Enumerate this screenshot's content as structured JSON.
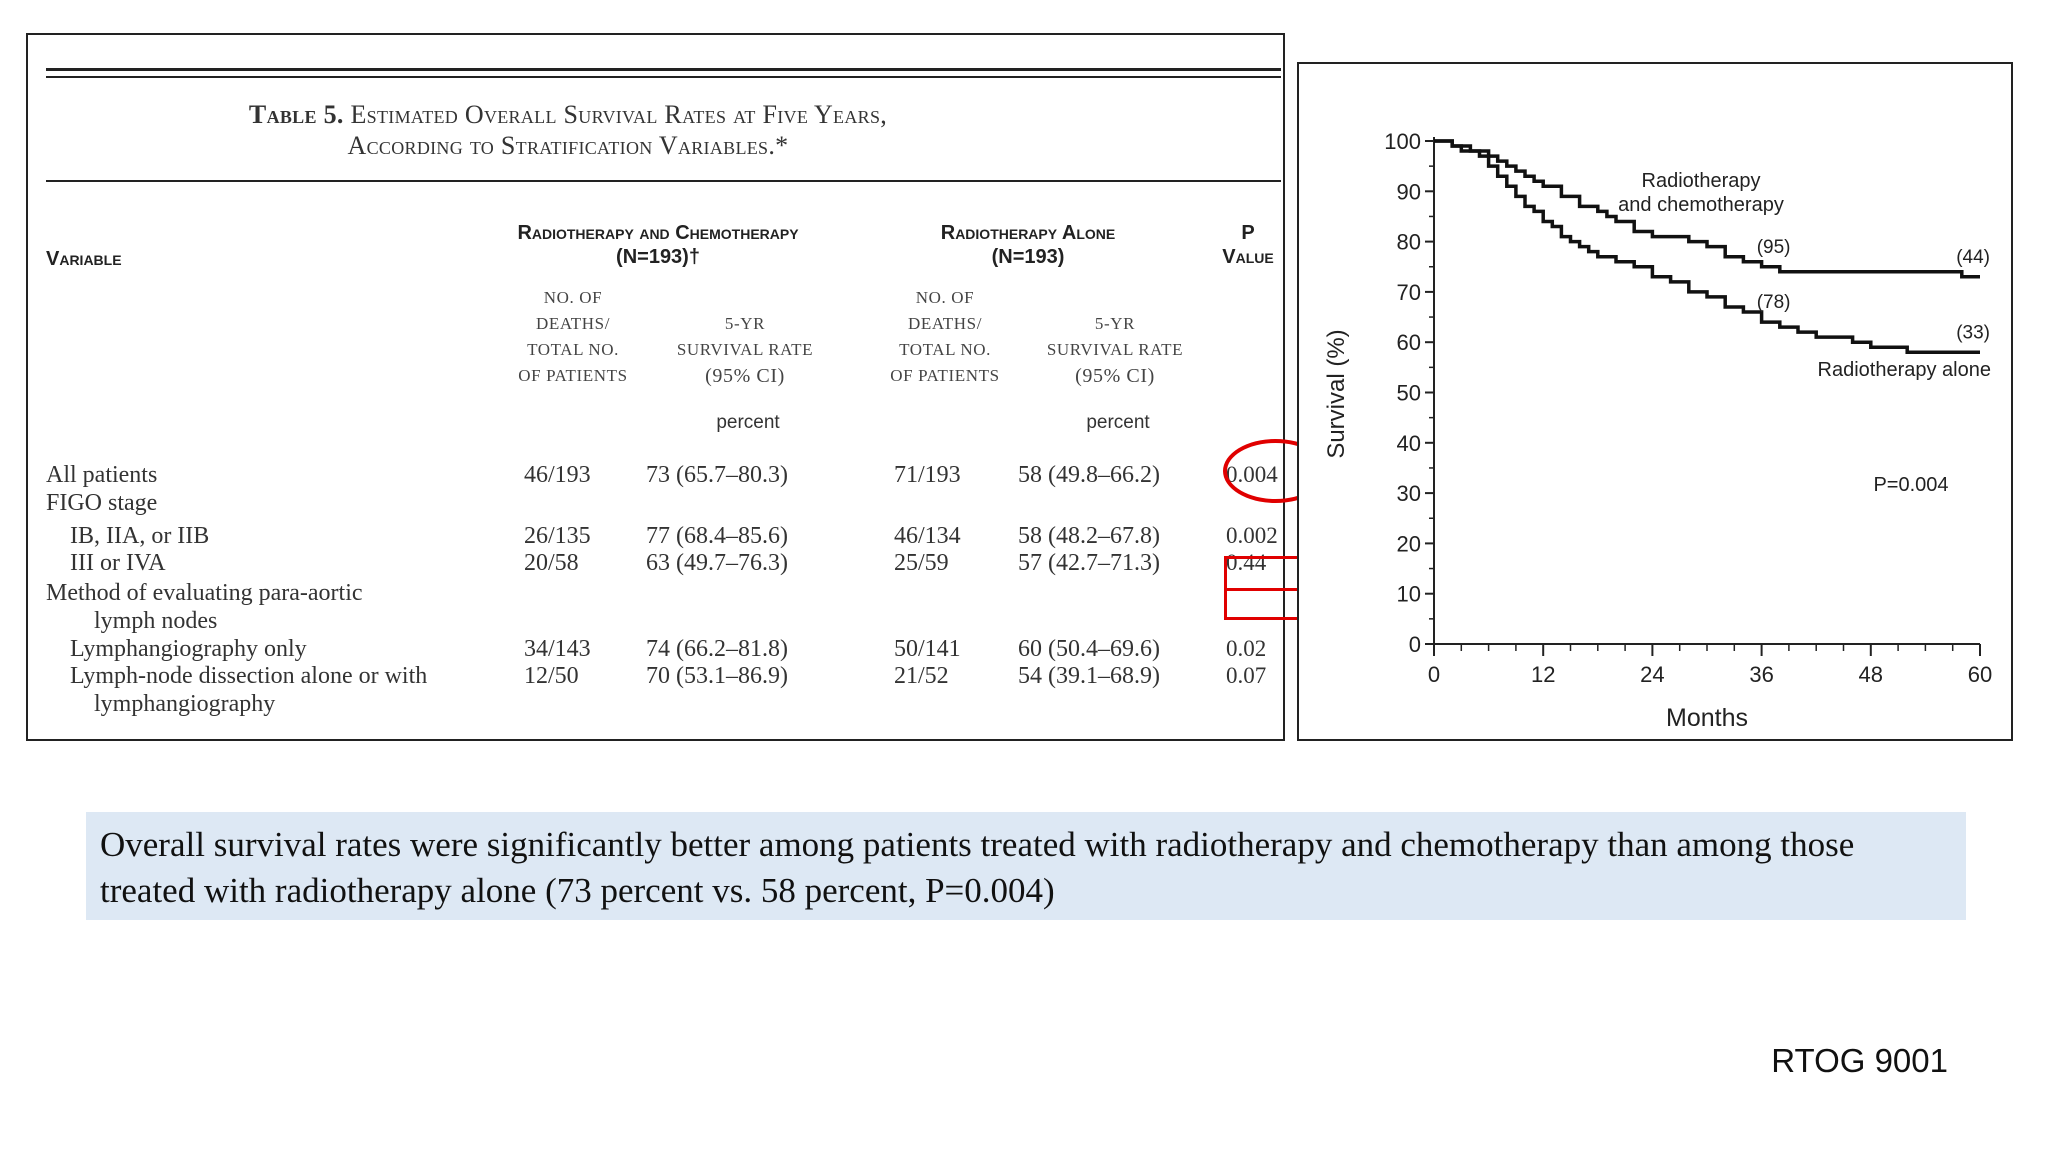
{
  "table": {
    "title_prefix": "Table 5.",
    "title_line1": "Estimated Overall Survival Rates at Five Years,",
    "title_line2": "According to Stratification Variables.*",
    "variable_header": "Variable",
    "group1_header": "Radiotherapy and Chemotherapy",
    "group1_n": "(N=193)†",
    "group2_header": "Radiotherapy Alone",
    "group2_n": "(N=193)",
    "p_header_1": "P",
    "p_header_2": "Value",
    "deaths_header": [
      "NO. OF",
      "DEATHS/",
      "TOTAL NO.",
      "OF PATIENTS"
    ],
    "rate_header": [
      "5-YR",
      "SURVIVAL RATE",
      "(95% CI)"
    ],
    "unit_label": "percent",
    "rows": [
      {
        "label": "All patients",
        "d1": "46/193",
        "r1": "73 (65.7–80.3)",
        "d2": "71/193",
        "r2": "58 (49.8–66.2)",
        "p": "0.004"
      },
      {
        "label": "FIGO stage"
      },
      {
        "label": "IB, IIA, or IIB",
        "d1": "26/135",
        "r1": "77 (68.4–85.6)",
        "d2": "46/134",
        "r2": "58 (48.2–67.8)",
        "p": "0.002"
      },
      {
        "label": "III or IVA",
        "d1": "20/58",
        "r1": "63 (49.7–76.3)",
        "d2": "25/59",
        "r2": "57 (42.7–71.3)",
        "p": "0.44"
      },
      {
        "label": "Method of evaluating para-aortic"
      },
      {
        "label": "lymph nodes"
      },
      {
        "label": "Lymphangiography only",
        "d1": "34/143",
        "r1": "74 (66.2–81.8)",
        "d2": "50/141",
        "r2": "60 (50.4–69.6)",
        "p": "0.02"
      },
      {
        "label": "Lymph-node dissection alone or with",
        "d1": "12/50",
        "r1": "70 (53.1–86.9)",
        "d2": "21/52",
        "r2": "54 (39.1–68.9)",
        "p": "0.07"
      },
      {
        "label": "lymphangiography"
      }
    ],
    "highlight_color": "#e00000"
  },
  "chart_data": {
    "type": "line",
    "title": "",
    "xlabel": "Months",
    "ylabel": "Survival (%)",
    "xlim": [
      0,
      60
    ],
    "ylim": [
      0,
      100
    ],
    "x_ticks": [
      0,
      12,
      24,
      36,
      48,
      60
    ],
    "y_ticks": [
      0,
      10,
      20,
      30,
      40,
      50,
      60,
      70,
      80,
      90,
      100
    ],
    "series": [
      {
        "name": "Radiotherapy and chemotherapy",
        "x": [
          0,
          1,
          2,
          3,
          4,
          5,
          6,
          7,
          8,
          9,
          10,
          11,
          12,
          14,
          16,
          18,
          19,
          20,
          22,
          24,
          26,
          28,
          30,
          32,
          34,
          36,
          38,
          40,
          48,
          56,
          58,
          60
        ],
        "y": [
          100,
          100,
          99,
          99,
          98,
          98,
          97,
          96,
          95,
          94,
          93,
          92,
          91,
          89,
          87,
          86,
          85,
          84,
          82,
          81,
          81,
          80,
          79,
          77,
          76,
          75,
          74,
          74,
          74,
          74,
          73,
          73
        ],
        "annotations": [
          {
            "x": 36,
            "text": "(95)"
          },
          {
            "x": 60,
            "text": "(44)"
          }
        ]
      },
      {
        "name": "Radiotherapy alone",
        "x": [
          0,
          1,
          2,
          3,
          4,
          5,
          6,
          7,
          8,
          9,
          10,
          11,
          12,
          13,
          14,
          15,
          16,
          17,
          18,
          20,
          22,
          24,
          26,
          28,
          30,
          32,
          34,
          36,
          38,
          40,
          42,
          44,
          46,
          48,
          52,
          56,
          60
        ],
        "y": [
          100,
          100,
          99,
          98,
          98,
          97,
          95,
          93,
          91,
          89,
          87,
          86,
          84,
          83,
          81,
          80,
          79,
          78,
          77,
          76,
          75,
          73,
          72,
          70,
          69,
          67,
          66,
          64,
          63,
          62,
          61,
          61,
          60,
          59,
          58,
          58,
          58
        ],
        "annotations": [
          {
            "x": 36,
            "text": "(78)"
          },
          {
            "x": 60,
            "text": "(33)"
          }
        ]
      }
    ],
    "legend": {
      "series1_line1": "Radiotherapy",
      "series1_line2": "and chemotherapy",
      "series2": "Radiotherapy alone"
    },
    "p_annotation": "P=0.004",
    "grid": false
  },
  "summary": {
    "text": "Overall survival rates were significantly better among patients treated with radiotherapy and chemotherapy than among those treated with radiotherapy alone (73 percent vs. 58 percent, P=0.004)"
  },
  "trial_label": "RTOG 9001"
}
